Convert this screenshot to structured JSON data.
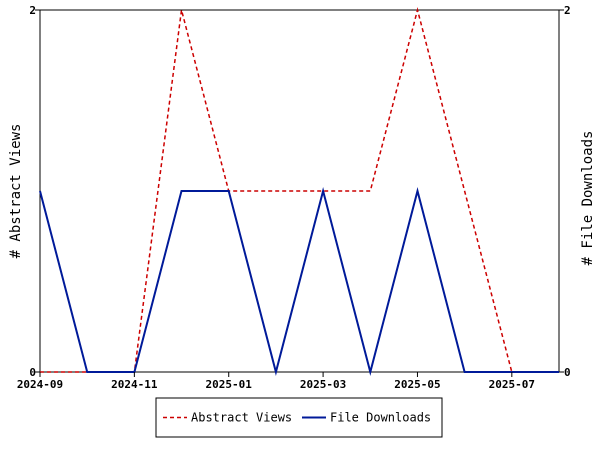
{
  "chart_data": {
    "type": "line",
    "x": [
      "2024-09",
      "2024-10",
      "2024-11",
      "2024-12",
      "2025-01",
      "2025-02",
      "2025-03",
      "2025-04",
      "2025-05",
      "2025-06",
      "2025-07",
      "2025-08"
    ],
    "x_tick_labels": [
      "2024-09",
      "2024-11",
      "2025-01",
      "2025-03",
      "2025-05",
      "2025-07"
    ],
    "series": [
      {
        "name": "Abstract Views",
        "axis": "left",
        "color": "#cc0000",
        "dash": "dashed",
        "values": [
          0,
          0,
          0,
          2,
          1,
          1,
          1,
          1,
          2,
          1,
          0,
          0
        ]
      },
      {
        "name": "File Downloads",
        "axis": "right",
        "color": "#001a99",
        "dash": "solid",
        "values": [
          1,
          0,
          0,
          1,
          1,
          0,
          1,
          0,
          1,
          0,
          0,
          0
        ]
      }
    ],
    "ylabel_left": "# Abstract Views",
    "ylabel_right": "# File Downloads",
    "ylim_left": [
      0,
      2
    ],
    "ylim_right": [
      0,
      2
    ],
    "y_ticks_left": [
      "0",
      "2"
    ],
    "y_ticks_right": [
      "0",
      "2"
    ],
    "grid": false,
    "legend_position": "bottom"
  }
}
